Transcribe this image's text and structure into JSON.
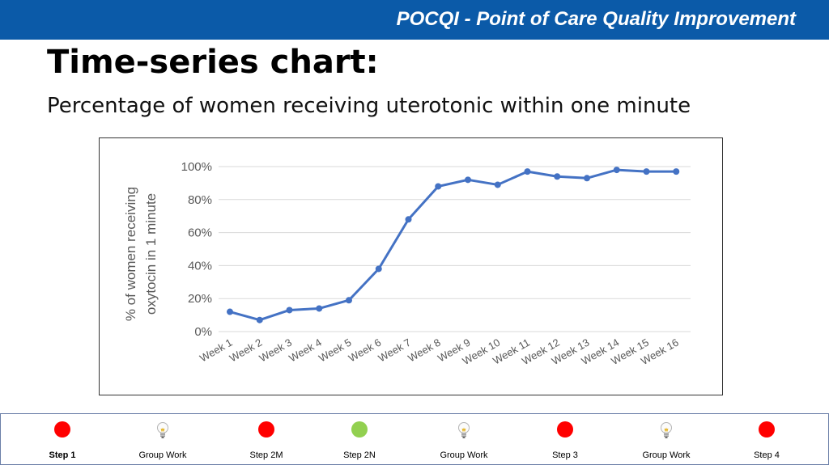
{
  "header": {
    "banner_text": "POCQI - Point of Care Quality Improvement",
    "title": "Time-series chart:",
    "subtitle": "Percentage of women receiving uterotonic within one minute"
  },
  "colors": {
    "banner": "#0b5aa8",
    "series_line": "#4472c4",
    "red_dot": "#ff0000",
    "green_dot": "#92d050"
  },
  "chart_data": {
    "type": "line",
    "ylabel": "% of women receiving oxytocin in 1 minute",
    "ylabel_lines": [
      "% of women receiving",
      "oxytocin in 1 minute"
    ],
    "categories": [
      "Week 1",
      "Week 2",
      "Week 3",
      "Week 4",
      "Week 5",
      "Week 6",
      "Week 7",
      "Week 8",
      "Week 9",
      "Week 10",
      "Week 11",
      "Week 12",
      "Week 13",
      "Week 14",
      "Week 15",
      "Week 16"
    ],
    "values": [
      12,
      7,
      13,
      14,
      19,
      38,
      68,
      88,
      92,
      89,
      97,
      94,
      93,
      98,
      97,
      97
    ],
    "ylim": [
      0,
      100
    ],
    "yticks": [
      0,
      20,
      40,
      60,
      80,
      100
    ],
    "ytick_labels": [
      "0%",
      "20%",
      "40%",
      "60%",
      "80%",
      "100%"
    ],
    "grid": true,
    "legend": false
  },
  "nav": {
    "items": [
      {
        "label": "Step 1",
        "icon": "red-dot-icon",
        "color": "#ff0000",
        "active": true
      },
      {
        "label": "Group Work",
        "icon": "lightbulb-icon",
        "active": false
      },
      {
        "label": "Step 2M",
        "icon": "red-dot-icon",
        "color": "#ff0000",
        "active": false
      },
      {
        "label": "Step 2N",
        "icon": "green-dot-icon",
        "color": "#92d050",
        "active": false
      },
      {
        "label": "Group Work",
        "icon": "lightbulb-icon",
        "active": false
      },
      {
        "label": "Step 3",
        "icon": "red-dot-icon",
        "color": "#ff0000",
        "active": false
      },
      {
        "label": "Group Work",
        "icon": "lightbulb-icon",
        "active": false
      },
      {
        "label": "Step 4",
        "icon": "red-dot-icon",
        "color": "#ff0000",
        "active": false
      }
    ]
  }
}
